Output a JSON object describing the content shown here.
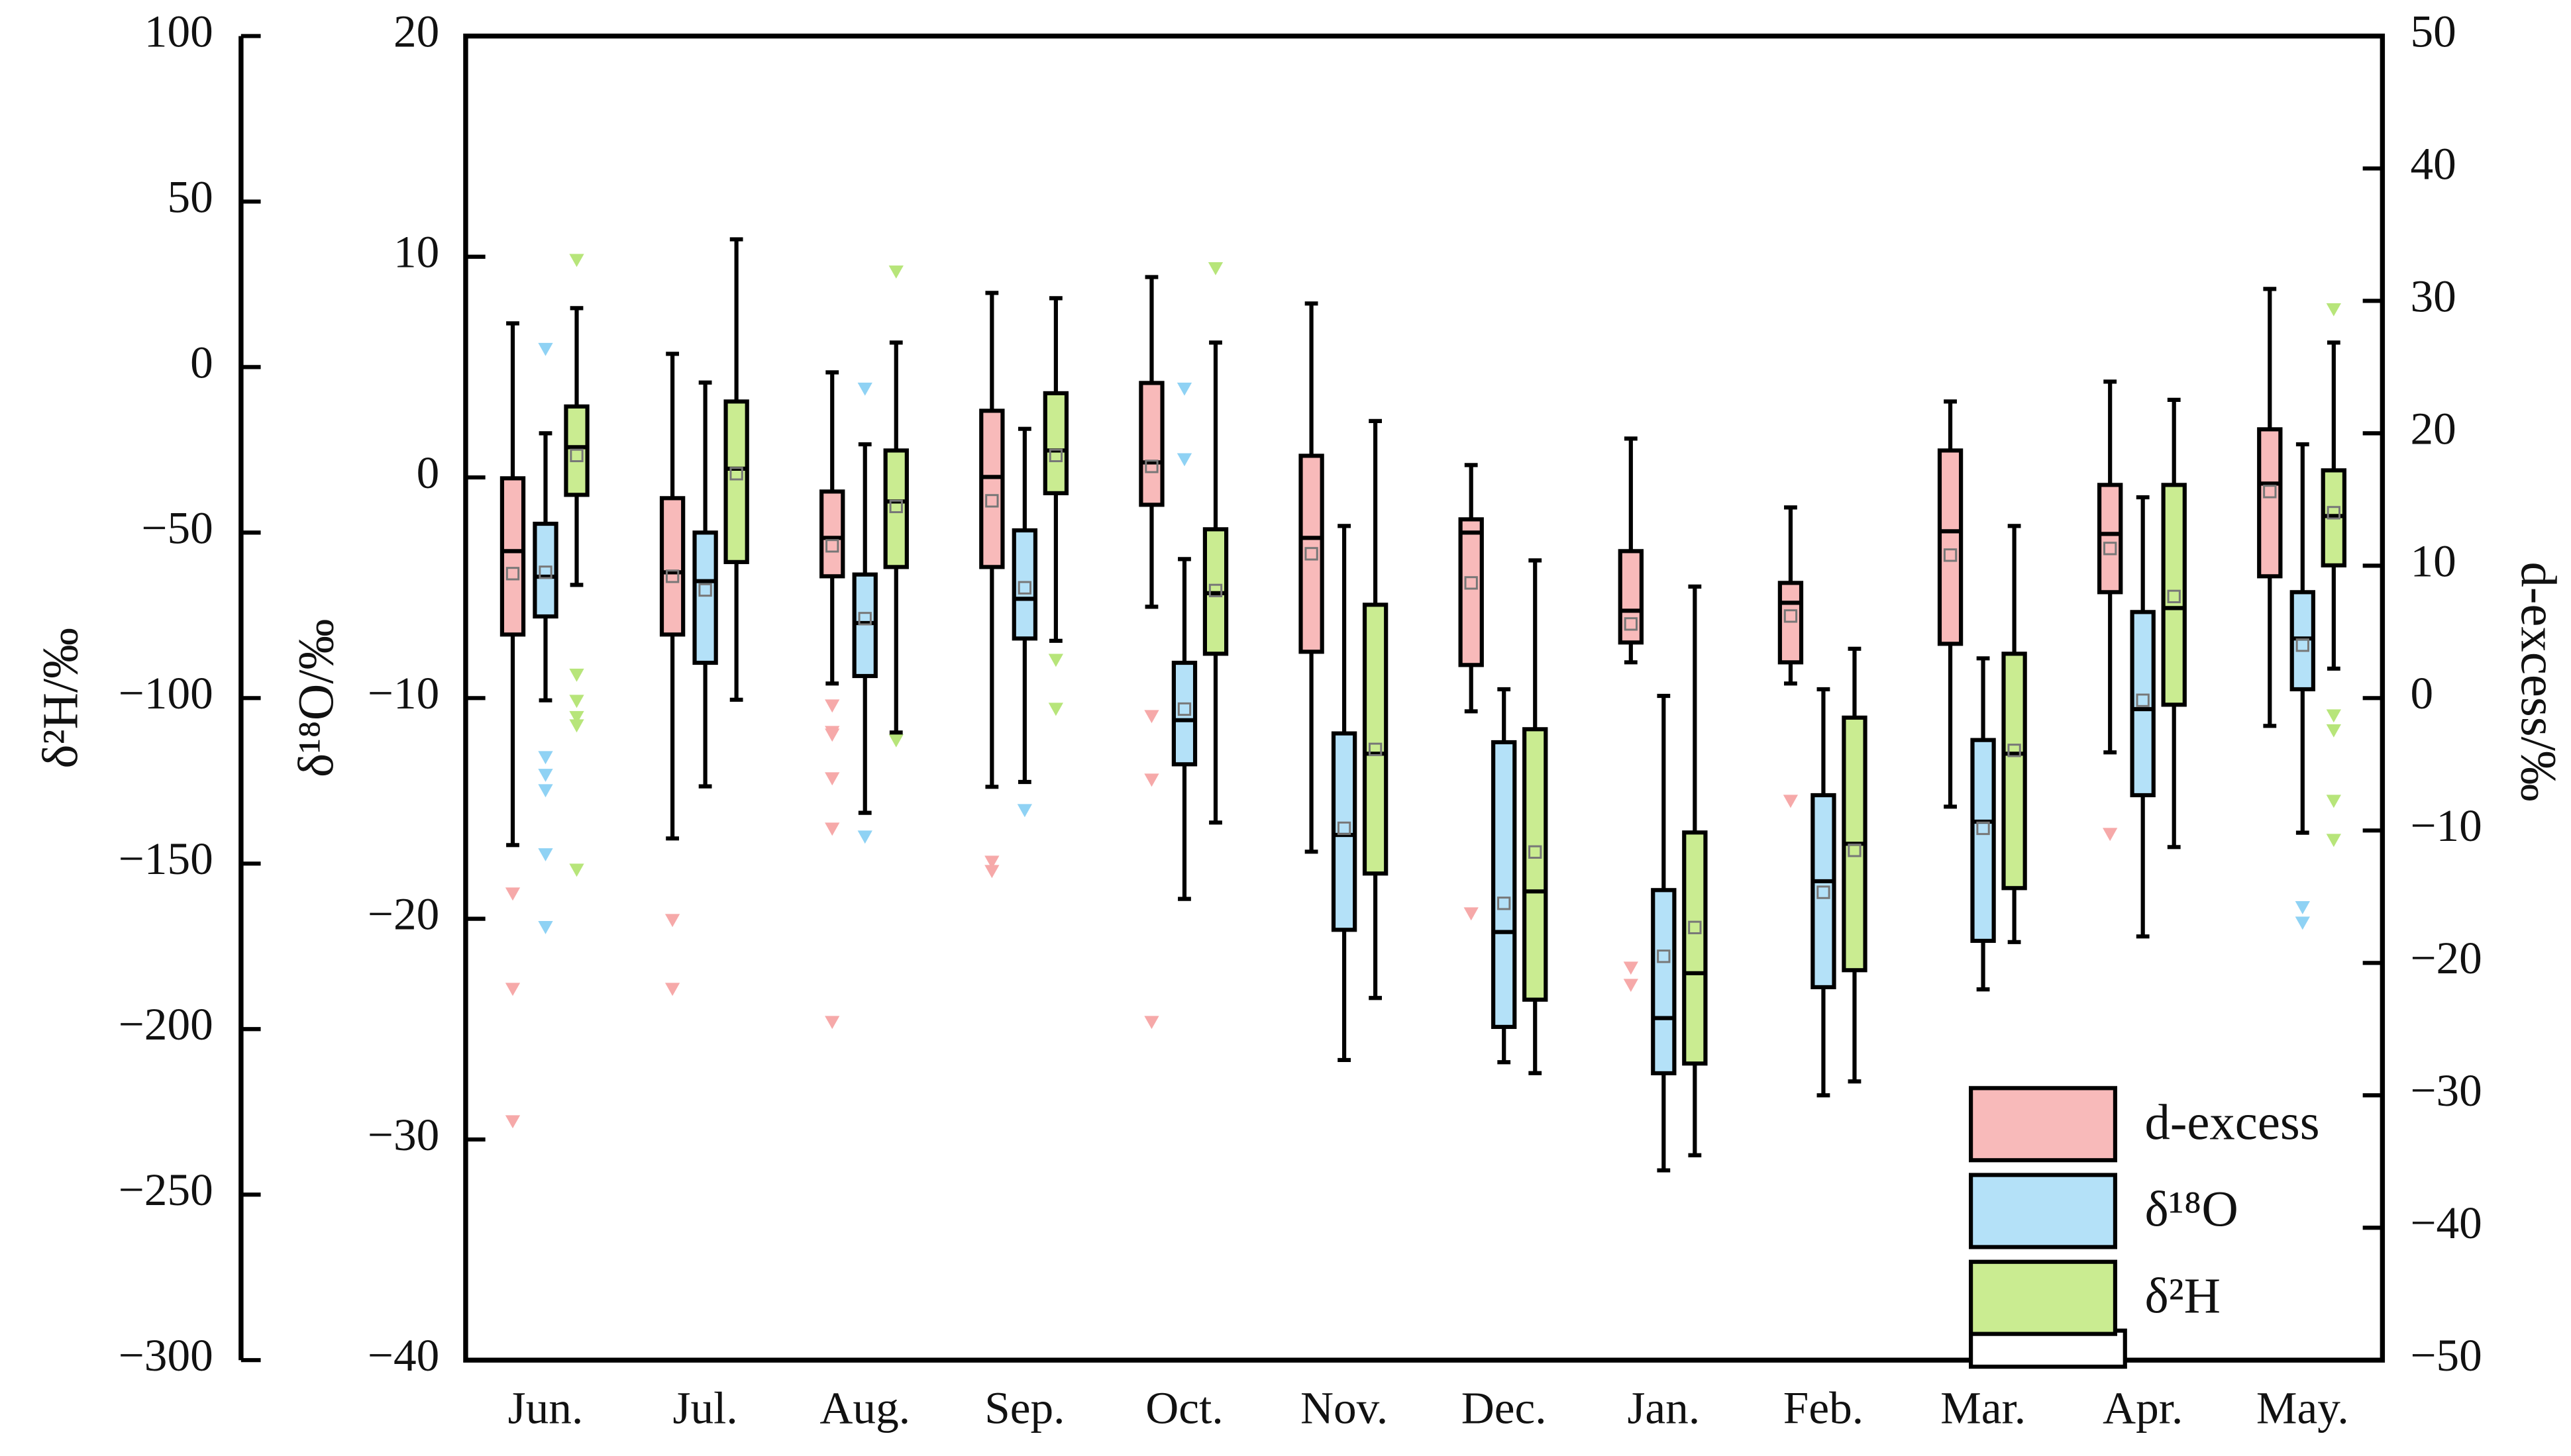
{
  "chart_data": {
    "type": "box",
    "ylabel": "δ²H/‰",
    "y3label": "δ¹⁸O/‰",
    "y2label": "d-excess/‰",
    "categories": [
      "Jun.",
      "Jul.",
      "Aug.",
      "Sep.",
      "Oct.",
      "Nov.",
      "Dec.",
      "Jan.",
      "Feb.",
      "Mar.",
      "Apr.",
      "May."
    ],
    "ylim": [
      -300,
      100
    ],
    "yticks": [
      {
        "value": -300,
        "label": "−300"
      },
      {
        "value": -250,
        "label": "−250"
      },
      {
        "value": -200,
        "label": "−200"
      },
      {
        "value": -150,
        "label": "−150"
      },
      {
        "value": -100,
        "label": "−100"
      },
      {
        "value": -50,
        "label": "−50"
      },
      0,
      50,
      100
    ],
    "y3lim": [
      -40,
      20
    ],
    "y3ticks": [
      {
        "value": -40,
        "label": "−40"
      },
      {
        "value": -30,
        "label": "−30"
      },
      {
        "value": -20,
        "label": "−20"
      },
      {
        "value": -10,
        "label": "−10"
      },
      0,
      10,
      20
    ],
    "y2lim": [
      -50,
      50
    ],
    "y2ticks": [
      {
        "value": -50,
        "label": "−50"
      },
      {
        "value": -40,
        "label": "−40"
      },
      {
        "value": -30,
        "label": "−30"
      },
      {
        "value": -20,
        "label": "−20"
      },
      {
        "value": -10,
        "label": "−10"
      },
      0,
      10,
      20,
      30,
      40,
      50
    ],
    "legend": "lower right",
    "series": [
      {
        "name": "d-excess",
        "color": "#f8baba",
        "outlier_color": "#f6a9a9",
        "axis": "y2",
        "stats": [
          {
            "min": -11.1,
            "q1": 4.8,
            "median": 11.1,
            "q3": 16.6,
            "max": 28.3,
            "mean": 9.4,
            "outliers": [
              -14.8,
              -22.0,
              -32.0
            ]
          },
          {
            "min": -10.6,
            "q1": 4.8,
            "median": 9.5,
            "q3": 15.1,
            "max": 26.0,
            "mean": 9.2,
            "outliers": [
              -16.8,
              -22.0
            ]
          },
          {
            "min": 1.1,
            "q1": 9.2,
            "median": 12.1,
            "q3": 15.6,
            "max": 24.6,
            "mean": 11.5,
            "outliers": [
              -0.6,
              -2.6,
              -2.8,
              -6.1,
              -9.9,
              -24.5
            ]
          },
          {
            "min": -6.7,
            "q1": 9.9,
            "median": 16.7,
            "q3": 21.7,
            "max": 30.6,
            "mean": 14.9,
            "outliers": [
              -12.4,
              -13.1
            ]
          },
          {
            "min": 6.9,
            "q1": 14.6,
            "median": 17.8,
            "q3": 23.8,
            "max": 31.8,
            "mean": 17.5,
            "outliers": [
              -1.4,
              -6.2,
              -24.5
            ]
          },
          {
            "min": -11.6,
            "q1": 3.5,
            "median": 12.1,
            "q3": 18.3,
            "max": 29.8,
            "mean": 10.9,
            "outliers": []
          },
          {
            "min": -1.0,
            "q1": 2.5,
            "median": 12.5,
            "q3": 13.5,
            "max": 17.6,
            "mean": 8.7,
            "outliers": [
              -16.3
            ]
          },
          {
            "min": 2.7,
            "q1": 4.2,
            "median": 6.6,
            "q3": 11.1,
            "max": 19.6,
            "mean": 5.6,
            "outliers": [
              -20.4,
              -21.7
            ]
          },
          {
            "min": 1.1,
            "q1": 2.7,
            "median": 7.2,
            "q3": 8.7,
            "max": 14.4,
            "mean": 6.2,
            "outliers": [
              -7.8
            ]
          },
          {
            "min": -8.2,
            "q1": 4.1,
            "median": 12.6,
            "q3": 18.7,
            "max": 22.4,
            "mean": 10.8,
            "outliers": []
          },
          {
            "min": -4.1,
            "q1": 8.0,
            "median": 12.4,
            "q3": 16.1,
            "max": 23.9,
            "mean": 11.3,
            "outliers": [
              -10.3
            ]
          },
          {
            "min": -2.1,
            "q1": 9.2,
            "median": 16.2,
            "q3": 20.3,
            "max": 30.9,
            "mean": 15.6,
            "outliers": []
          }
        ]
      },
      {
        "name": "δ¹⁸O",
        "color": "#b4e1f8",
        "outlier_color": "#8fd2f4",
        "axis": "y3",
        "stats": [
          {
            "min": -10.1,
            "q1": -6.3,
            "median": -4.5,
            "q3": -2.1,
            "max": 2.0,
            "mean": -4.3,
            "outliers": [
              5.8,
              -12.7,
              -13.5,
              -14.2,
              -17.1,
              -20.4
            ]
          },
          {
            "min": -14.0,
            "q1": -8.4,
            "median": -4.7,
            "q3": -2.5,
            "max": 4.3,
            "mean": -5.1,
            "outliers": []
          },
          {
            "min": -15.2,
            "q1": -9.0,
            "median": -6.6,
            "q3": -4.4,
            "max": 1.5,
            "mean": -6.4,
            "outliers": [
              4.0,
              -16.3
            ]
          },
          {
            "min": -13.8,
            "q1": -7.3,
            "median": -5.5,
            "q3": -2.4,
            "max": 2.2,
            "mean": -5.0,
            "outliers": [
              -15.1
            ]
          },
          {
            "min": -19.1,
            "q1": -13.0,
            "median": -11.0,
            "q3": -8.4,
            "max": -3.7,
            "mean": -10.5,
            "outliers": [
              4.0,
              0.8
            ]
          },
          {
            "min": -26.4,
            "q1": -20.5,
            "median": -16.2,
            "q3": -11.6,
            "max": -2.2,
            "mean": -15.9,
            "outliers": []
          },
          {
            "min": -26.5,
            "q1": -24.9,
            "median": -20.6,
            "q3": -12.0,
            "max": -9.6,
            "mean": -19.3,
            "outliers": []
          },
          {
            "min": -31.4,
            "q1": -27.0,
            "median": -24.5,
            "q3": -18.7,
            "max": -9.9,
            "mean": -21.7,
            "outliers": []
          },
          {
            "min": -28.0,
            "q1": -23.1,
            "median": -18.3,
            "q3": -14.4,
            "max": -9.6,
            "mean": -18.8,
            "outliers": []
          },
          {
            "min": -23.2,
            "q1": -21.0,
            "median": -15.6,
            "q3": -11.9,
            "max": -8.2,
            "mean": -15.9,
            "outliers": []
          },
          {
            "min": -20.8,
            "q1": -14.4,
            "median": -10.5,
            "q3": -6.1,
            "max": -0.9,
            "mean": -10.1,
            "outliers": []
          },
          {
            "min": -16.1,
            "q1": -9.6,
            "median": -7.3,
            "q3": -5.2,
            "max": 1.5,
            "mean": -7.6,
            "outliers": [
              -19.5,
              -20.2
            ]
          }
        ]
      },
      {
        "name": "δ²H",
        "color": "#caec91",
        "outlier_color": "#b7e57a",
        "axis": "y",
        "stats": [
          {
            "min": -65.8,
            "q1": -38.6,
            "median": -24.2,
            "q3": -11.9,
            "max": 17.8,
            "mean": -26.7,
            "outliers": [
              32.2,
              -93.1,
              -101,
              -105.9,
              -108.4,
              -152
            ]
          },
          {
            "min": -100.5,
            "q1": -58.9,
            "median": -30.7,
            "q3": -10.4,
            "max": 38.6,
            "mean": -32.2,
            "outliers": []
          },
          {
            "min": -110.4,
            "q1": -60.4,
            "median": -40.6,
            "q3": -25.2,
            "max": 7.4,
            "mean": -42.1,
            "outliers": [
              28.7,
              -112.9
            ]
          },
          {
            "min": -82.7,
            "q1": -38.1,
            "median": -25.2,
            "q3": -7.9,
            "max": 20.8,
            "mean": -26.7,
            "outliers": [
              -88.6,
              -103.4
            ]
          },
          {
            "min": -137.6,
            "q1": -86.6,
            "median": -68.3,
            "q3": -49.0,
            "max": 7.4,
            "mean": -67.5,
            "outliers": [
              29.7
            ]
          },
          {
            "min": -190.6,
            "q1": -153,
            "median": -116.8,
            "q3": -71.8,
            "max": -16.3,
            "mean": -115.5,
            "outliers": []
          },
          {
            "min": -213.3,
            "q1": -191.1,
            "median": -158.4,
            "q3": -109.4,
            "max": -58.4,
            "mean": -146.5,
            "outliers": []
          },
          {
            "min": -238.1,
            "q1": -210.4,
            "median": -183.1,
            "q3": -140.6,
            "max": -66.3,
            "mean": -169.3,
            "outliers": []
          },
          {
            "min": -215.8,
            "q1": -182.2,
            "median": -144.0,
            "q3": -105.9,
            "max": -85.1,
            "mean": -146.0,
            "outliers": []
          },
          {
            "min": -173.7,
            "q1": -157.4,
            "median": -116.8,
            "q3": -86.6,
            "max": -48.0,
            "mean": -115.8,
            "outliers": []
          },
          {
            "min": -145,
            "q1": -102,
            "median": -72.8,
            "q3": -35.6,
            "max": -9.9,
            "mean": -69.3,
            "outliers": []
          },
          {
            "min": -91.1,
            "q1": -59.9,
            "median": -45.0,
            "q3": -31.2,
            "max": 7.4,
            "mean": -44.0,
            "outliers": [
              17.3,
              -105.4,
              -109.9,
              -131.2,
              -143.0
            ]
          }
        ]
      }
    ]
  }
}
